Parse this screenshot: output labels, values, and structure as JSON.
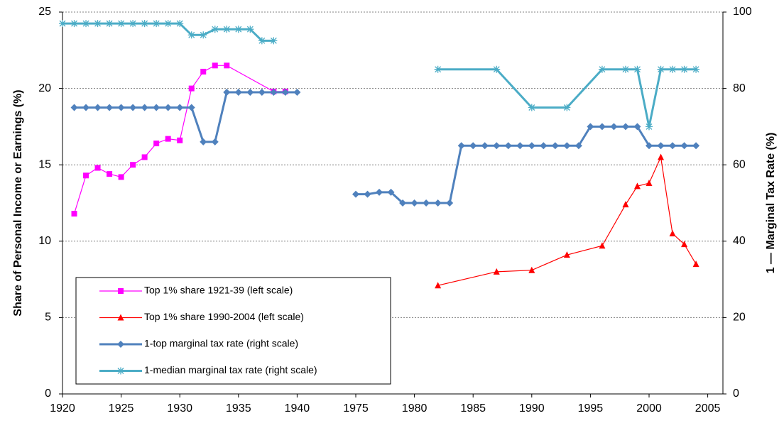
{
  "chart_data": {
    "type": "line",
    "y_label": "Share of Personal Income or Earnings (%)",
    "y2_label": "1 — Marginal Tax Rate (%)",
    "xticks": [
      1920,
      1925,
      1930,
      1935,
      1940,
      1975,
      1980,
      1985,
      1990,
      1995,
      2000,
      2005
    ],
    "ylim": [
      0,
      25
    ],
    "yticks": [
      0,
      5,
      10,
      15,
      20,
      25
    ],
    "y2lim": [
      0,
      100
    ],
    "y2ticks": [
      0,
      20,
      40,
      60,
      80,
      100
    ],
    "grid": true,
    "legend": "lower-left",
    "series": [
      {
        "name": "Top 1% share 1921-39 (left scale)",
        "color": "#ff00ff",
        "marker": "square",
        "x": [
          1921,
          1922,
          1923,
          1924,
          1925,
          1926,
          1927,
          1928,
          1929,
          1930,
          1931,
          1932,
          1933,
          1934,
          1938,
          1939
        ],
        "values": [
          11.8,
          14.3,
          14.8,
          14.4,
          14.2,
          15.0,
          15.5,
          16.4,
          16.7,
          16.6,
          20.0,
          21.1,
          21.5,
          21.5,
          19.8,
          19.8
        ]
      },
      {
        "name": "Top 1% share 1990-2004  (left scale)",
        "color": "#ff0000",
        "marker": "triangle",
        "x": [
          1982,
          1987,
          1990,
          1993,
          1996,
          1998,
          1999,
          2000,
          2001,
          2002,
          2003,
          2004
        ],
        "values": [
          7.1,
          8.0,
          8.1,
          9.1,
          9.7,
          12.4,
          13.6,
          13.8,
          15.5,
          10.5,
          9.8,
          8.5
        ]
      },
      {
        "name": "1-top marginal tax rate (right scale)",
        "color": "#4f81bd",
        "marker": "diamond",
        "axis": "y2",
        "x": [
          1921,
          1922,
          1923,
          1924,
          1925,
          1926,
          1927,
          1928,
          1929,
          1930,
          1931,
          1932,
          1933,
          1934,
          1935,
          1936,
          1937,
          1938,
          1939,
          1940,
          null,
          1975,
          1976,
          1977,
          1978,
          1979,
          1980,
          1981,
          1982,
          1983,
          1984,
          1985,
          1986,
          1987,
          1988,
          1989,
          1990,
          1991,
          1992,
          1993,
          1994,
          1995,
          1996,
          1997,
          1998,
          1999,
          2000,
          2001,
          2002,
          2003,
          2004
        ],
        "values": [
          75,
          75,
          75,
          75,
          75,
          75,
          75,
          75,
          75,
          75,
          75,
          66,
          66,
          79,
          79,
          79,
          79,
          79,
          79,
          79,
          null,
          52.3,
          52.3,
          52.8,
          52.8,
          50,
          50,
          50,
          50,
          50,
          65,
          65,
          65,
          65,
          65,
          65,
          65,
          65,
          65,
          65,
          65,
          70,
          70,
          70,
          70,
          70,
          65,
          65,
          65,
          65,
          65
        ]
      },
      {
        "name": "1-median marginal tax rate (right scale)",
        "color": "#4bacc6",
        "marker": "star",
        "axis": "y2",
        "x": [
          1920,
          1921,
          1922,
          1923,
          1924,
          1925,
          1926,
          1927,
          1928,
          1929,
          1930,
          1931,
          1932,
          1933,
          1934,
          1935,
          1936,
          1937,
          1938,
          null,
          1982,
          1987,
          1990,
          1993,
          1996,
          1998,
          1999,
          2000,
          2001,
          2002,
          2003,
          2004
        ],
        "values": [
          97,
          97,
          97,
          97,
          97,
          97,
          97,
          97,
          97,
          97,
          97,
          94,
          94,
          95.5,
          95.5,
          95.5,
          95.5,
          92.5,
          92.5,
          null,
          85,
          85,
          75,
          75,
          85,
          85,
          85,
          70,
          85,
          85,
          85,
          85
        ]
      }
    ]
  }
}
